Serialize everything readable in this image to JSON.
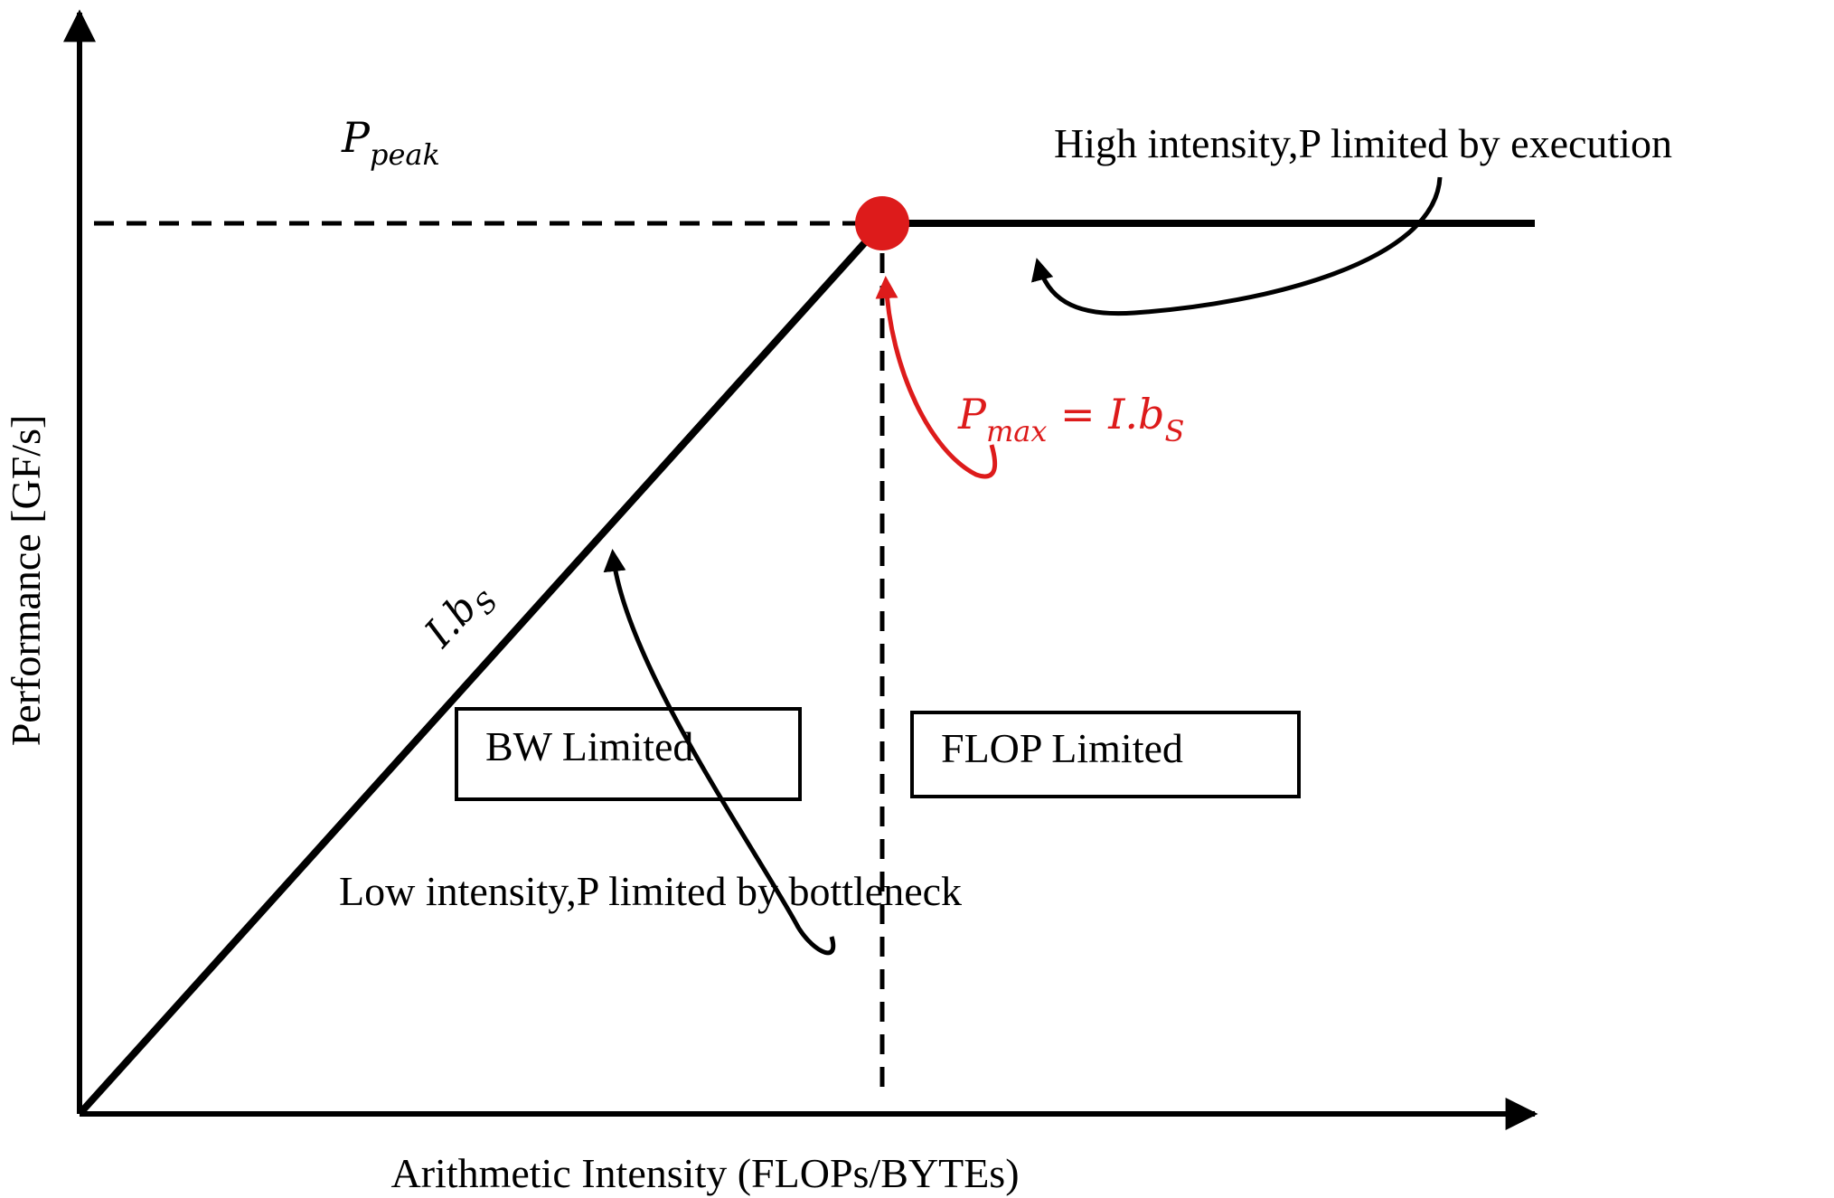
{
  "diagram": {
    "x_axis_label": "Arithmetic Intensity (FLOPs/BYTEs)",
    "y_axis_label": "Performance [GF/s]",
    "p_peak": {
      "base": "P",
      "sub": "peak"
    },
    "slope_label": {
      "base": "I.b",
      "sub": "S"
    },
    "p_max_label": {
      "lhs_base": "P",
      "lhs_sub": "max",
      "eq": " = ",
      "rhs_base": "I.b",
      "rhs_sub": "S"
    },
    "annotation_high": "High intensity,P limited by execution",
    "annotation_low": "Low intensity,P limited by bottleneck",
    "box_bw": "BW Limited",
    "box_flop": "FLOP Limited",
    "colors": {
      "ink": "#000000",
      "accent": "#dd1b1b"
    }
  }
}
